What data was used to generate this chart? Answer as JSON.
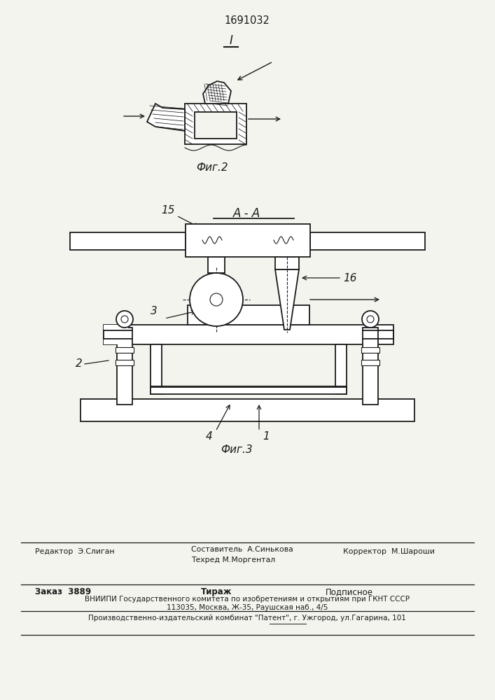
{
  "patent_number": "1691032",
  "fig2_label": "Фиг.2",
  "fig3_label": "Фиг.3",
  "section_label": "A - A",
  "label_1_roman": "I",
  "label_15": "15",
  "label_16": "16",
  "label_2": "2",
  "label_3": "3",
  "label_4": "4",
  "label_1": "1",
  "bg_color": "#f4f4ef",
  "line_color": "#1a1a1a",
  "footer_editor": "Редактор  Э.Слиган",
  "footer_compiler": "Составитель  А.Синькова",
  "footer_techred": "Техред М.Моргентал",
  "footer_corrector": "Корректор  М.Шароши",
  "footer_order": "Заказ  3889",
  "footer_tirazh": "Тираж",
  "footer_podpisnoe": "Подписное",
  "footer_vniiipi": "ВНИИПИ Государственного комитета по изобретениям и открытиям при ГКНТ СССР",
  "footer_address": "113035, Москва, Ж-35, Раушская наб., 4/5",
  "footer_producer": "Производственно-издательский комбинат \"Патент\", г. Ужгород, ул.Гагарина, 101"
}
